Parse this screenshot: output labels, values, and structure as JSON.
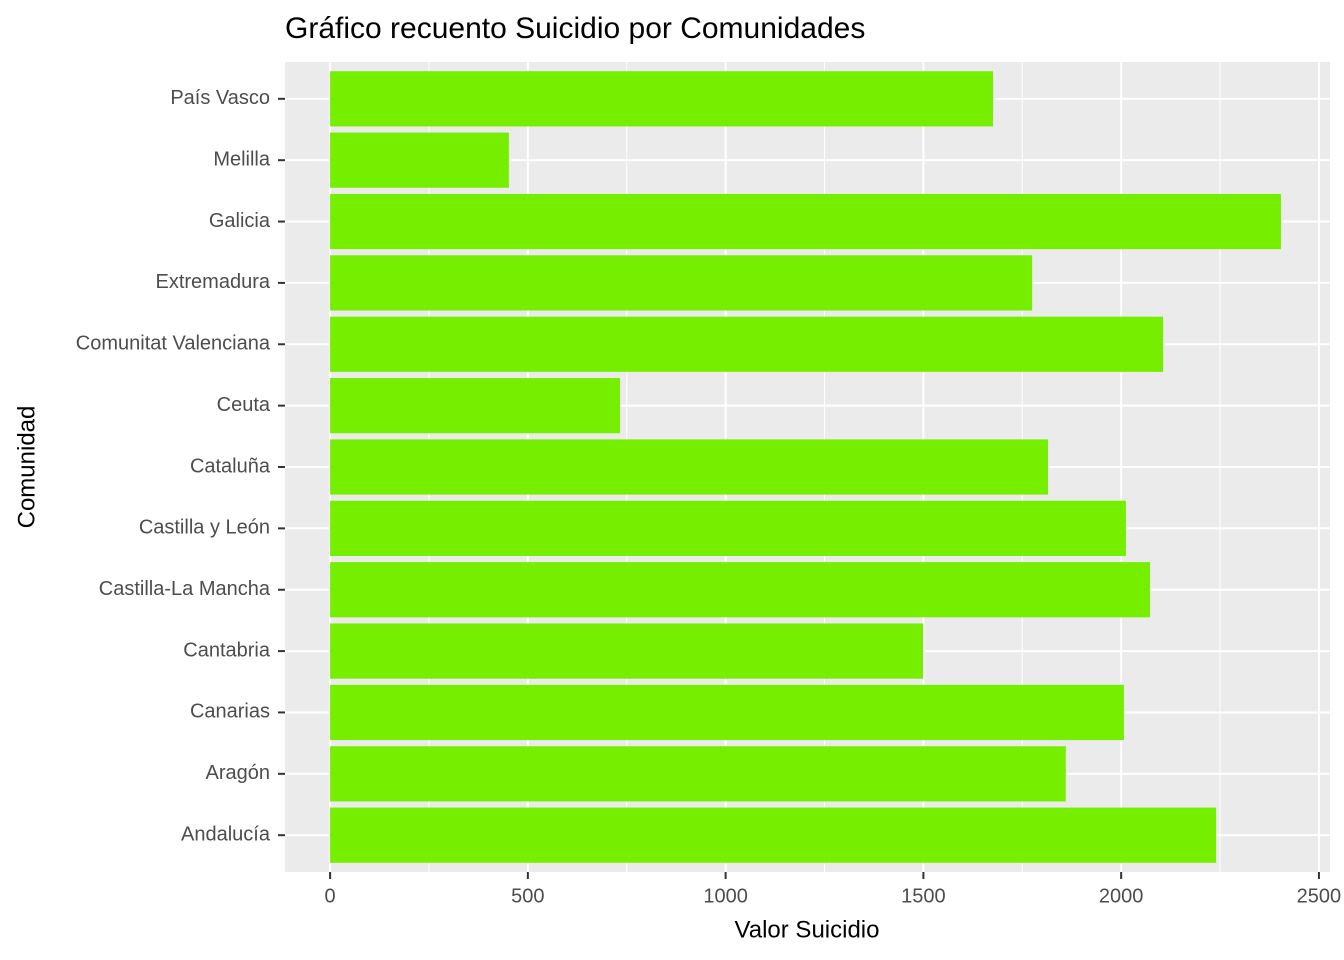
{
  "chart_data": {
    "type": "bar",
    "orientation": "horizontal",
    "title": "Gráfico recuento Suicidio por Comunidades",
    "x_label": "Valor Suicidio",
    "y_label": "Comunidad",
    "categories": [
      "País Vasco",
      "Melilla",
      "Galicia",
      "Extremadura",
      "Comunitat Valenciana",
      "Ceuta",
      "Cataluña",
      "Castilla y León",
      "Castilla-La Mancha",
      "Cantabria",
      "Canarias",
      "Aragón",
      "Andalucía"
    ],
    "values": [
      1676,
      452,
      2404,
      1775,
      2106,
      733,
      1815,
      2012,
      2073,
      1499,
      2007,
      1860,
      2240
    ],
    "color": "#76ee00",
    "xlim": [
      -114,
      2528
    ],
    "xticks": [
      0,
      500,
      1000,
      1500,
      2000,
      2500
    ],
    "grid": true
  }
}
